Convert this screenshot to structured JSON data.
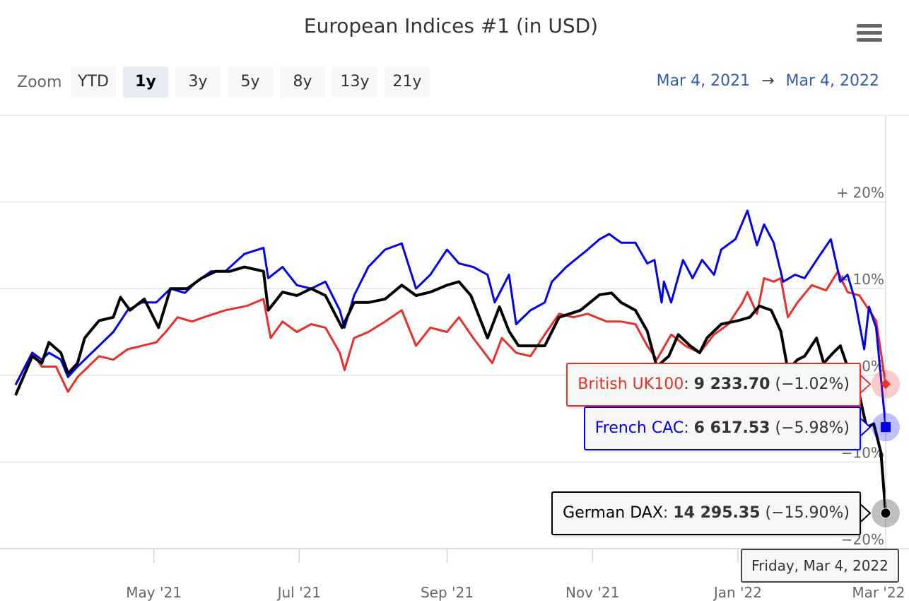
{
  "title": "European Indices #1 (in USD)",
  "zoom": {
    "label": "Zoom",
    "buttons": [
      "YTD",
      "1y",
      "3y",
      "5y",
      "8y",
      "13y",
      "21y"
    ],
    "active": "1y"
  },
  "range": {
    "from": "Mar 4, 2021",
    "arrow": "→",
    "to": "Mar 4, 2022"
  },
  "icons": {
    "menu": "hamburger-menu-icon"
  },
  "chart_data": {
    "type": "line",
    "title": "European Indices #1 (in USD)",
    "x_unit": "days since Mar 4, 2021",
    "xlim": [
      0,
      365
    ],
    "ylim": [
      -20,
      30
    ],
    "y_ticks": [
      {
        "v": 20,
        "label": "+ 20%"
      },
      {
        "v": 10,
        "label": "+ 10%"
      },
      {
        "v": 0,
        "label": "0%"
      },
      {
        "v": -10,
        "label": "−10%"
      },
      {
        "v": -20,
        "label": "−20%"
      }
    ],
    "x_ticks": [
      {
        "d": 58,
        "label": "May '21"
      },
      {
        "d": 119,
        "label": "Jul '21"
      },
      {
        "d": 181,
        "label": "Sep '21"
      },
      {
        "d": 242,
        "label": "Nov '21"
      },
      {
        "d": 303,
        "label": "Jan '22"
      },
      {
        "d": 362,
        "label": "Mar '22"
      }
    ],
    "series": [
      {
        "name": "British UK100",
        "color": "#e8302a",
        "marker": "diamond",
        "value": "9 233.70",
        "change": "(−1.02%)",
        "points": [
          [
            0,
            -1.1
          ],
          [
            7,
            2.6
          ],
          [
            11,
            1.0
          ],
          [
            17,
            1.0
          ],
          [
            22,
            -1.9
          ],
          [
            26,
            -0.2
          ],
          [
            35,
            2.2
          ],
          [
            41,
            1.8
          ],
          [
            47,
            3.0
          ],
          [
            53,
            3.4
          ],
          [
            59,
            3.8
          ],
          [
            63,
            5.0
          ],
          [
            68,
            6.7
          ],
          [
            74,
            6.2
          ],
          [
            79,
            6.7
          ],
          [
            88,
            7.5
          ],
          [
            97,
            8.0
          ],
          [
            104,
            8.8
          ],
          [
            107,
            4.3
          ],
          [
            112,
            6.2
          ],
          [
            118,
            5.0
          ],
          [
            124,
            5.9
          ],
          [
            130,
            5.5
          ],
          [
            136,
            2.6
          ],
          [
            138,
            0.6
          ],
          [
            142,
            4.3
          ],
          [
            148,
            5.0
          ],
          [
            155,
            6.2
          ],
          [
            162,
            7.5
          ],
          [
            168,
            3.4
          ],
          [
            174,
            5.5
          ],
          [
            181,
            5.0
          ],
          [
            186,
            6.7
          ],
          [
            192,
            4.3
          ],
          [
            200,
            1.4
          ],
          [
            204,
            4.3
          ],
          [
            210,
            2.6
          ],
          [
            216,
            2.2
          ],
          [
            222,
            4.7
          ],
          [
            228,
            7.1
          ],
          [
            234,
            6.7
          ],
          [
            240,
            7.1
          ],
          [
            248,
            6.2
          ],
          [
            254,
            6.2
          ],
          [
            260,
            5.9
          ],
          [
            265,
            3.4
          ],
          [
            269,
            1.8
          ],
          [
            275,
            4.7
          ],
          [
            281,
            3.4
          ],
          [
            287,
            2.6
          ],
          [
            293,
            4.7
          ],
          [
            299,
            5.9
          ],
          [
            305,
            8.4
          ],
          [
            307,
            9.6
          ],
          [
            311,
            7.1
          ],
          [
            314,
            11.2
          ],
          [
            318,
            10.8
          ],
          [
            321,
            11.2
          ],
          [
            324,
            6.7
          ],
          [
            328,
            8.4
          ],
          [
            334,
            10.4
          ],
          [
            340,
            9.8
          ],
          [
            345,
            12.0
          ],
          [
            349,
            9.6
          ],
          [
            354,
            9.2
          ],
          [
            361,
            6.3
          ],
          [
            365,
            -1.02
          ]
        ]
      },
      {
        "name": "French CAC",
        "color": "#0000ee",
        "marker": "square",
        "value": "6 617.53",
        "change": "(−5.98%)",
        "points": [
          [
            0,
            -1.1
          ],
          [
            7,
            2.6
          ],
          [
            11,
            1.8
          ],
          [
            14,
            2.6
          ],
          [
            19,
            1.8
          ],
          [
            22,
            -0.2
          ],
          [
            26,
            1.0
          ],
          [
            32,
            2.6
          ],
          [
            41,
            5.0
          ],
          [
            47,
            7.5
          ],
          [
            53,
            8.4
          ],
          [
            59,
            8.4
          ],
          [
            65,
            10.0
          ],
          [
            71,
            9.5
          ],
          [
            76,
            10.8
          ],
          [
            82,
            12.0
          ],
          [
            88,
            12.0
          ],
          [
            96,
            14.0
          ],
          [
            104,
            14.7
          ],
          [
            106,
            11.2
          ],
          [
            112,
            12.5
          ],
          [
            118,
            10.4
          ],
          [
            124,
            10.0
          ],
          [
            130,
            10.8
          ],
          [
            136,
            7.5
          ],
          [
            138,
            5.5
          ],
          [
            142,
            9.2
          ],
          [
            148,
            12.5
          ],
          [
            155,
            14.5
          ],
          [
            162,
            15.2
          ],
          [
            168,
            10.0
          ],
          [
            174,
            11.6
          ],
          [
            181,
            14.5
          ],
          [
            186,
            12.9
          ],
          [
            192,
            12.5
          ],
          [
            198,
            11.6
          ],
          [
            201,
            8.4
          ],
          [
            207,
            11.6
          ],
          [
            210,
            5.9
          ],
          [
            216,
            7.5
          ],
          [
            222,
            8.4
          ],
          [
            225,
            10.8
          ],
          [
            231,
            12.5
          ],
          [
            240,
            14.5
          ],
          [
            245,
            15.7
          ],
          [
            249,
            16.3
          ],
          [
            254,
            15.3
          ],
          [
            260,
            15.3
          ],
          [
            265,
            12.9
          ],
          [
            268,
            13.3
          ],
          [
            271,
            8.4
          ],
          [
            272,
            10.8
          ],
          [
            275,
            8.4
          ],
          [
            280,
            13.3
          ],
          [
            284,
            11.2
          ],
          [
            288,
            13.3
          ],
          [
            293,
            11.6
          ],
          [
            296,
            14.5
          ],
          [
            302,
            15.7
          ],
          [
            307,
            19.0
          ],
          [
            311,
            15.0
          ],
          [
            314,
            17.4
          ],
          [
            318,
            15.3
          ],
          [
            322,
            10.8
          ],
          [
            327,
            11.6
          ],
          [
            331,
            11.2
          ],
          [
            337,
            13.7
          ],
          [
            342,
            15.7
          ],
          [
            346,
            10.8
          ],
          [
            349,
            11.6
          ],
          [
            352,
            8.8
          ],
          [
            356,
            3.0
          ],
          [
            358,
            7.9
          ],
          [
            361,
            5.5
          ],
          [
            365,
            -5.98
          ]
        ]
      },
      {
        "name": "German DAX",
        "color": "#000000",
        "marker": "circle",
        "value": "14 295.35",
        "change": "(−15.90%)",
        "points": [
          [
            0,
            -2.3
          ],
          [
            7,
            2.2
          ],
          [
            11,
            1.4
          ],
          [
            14,
            3.8
          ],
          [
            19,
            2.6
          ],
          [
            22,
            0.2
          ],
          [
            26,
            1.4
          ],
          [
            29,
            4.3
          ],
          [
            35,
            6.3
          ],
          [
            41,
            6.7
          ],
          [
            44,
            9.0
          ],
          [
            48,
            7.5
          ],
          [
            54,
            8.8
          ],
          [
            60,
            5.5
          ],
          [
            65,
            10.0
          ],
          [
            72,
            10.0
          ],
          [
            78,
            11.2
          ],
          [
            84,
            12.0
          ],
          [
            90,
            12.0
          ],
          [
            96,
            12.5
          ],
          [
            104,
            12.0
          ],
          [
            106,
            7.5
          ],
          [
            112,
            9.6
          ],
          [
            118,
            9.2
          ],
          [
            124,
            10.0
          ],
          [
            130,
            9.2
          ],
          [
            137,
            5.5
          ],
          [
            142,
            8.4
          ],
          [
            148,
            8.4
          ],
          [
            155,
            8.8
          ],
          [
            162,
            10.4
          ],
          [
            168,
            9.2
          ],
          [
            174,
            9.6
          ],
          [
            181,
            10.4
          ],
          [
            186,
            10.8
          ],
          [
            191,
            9.2
          ],
          [
            198,
            4.3
          ],
          [
            203,
            7.9
          ],
          [
            207,
            5.1
          ],
          [
            211,
            3.4
          ],
          [
            216,
            3.4
          ],
          [
            222,
            3.4
          ],
          [
            228,
            6.7
          ],
          [
            237,
            7.5
          ],
          [
            245,
            9.3
          ],
          [
            250,
            9.5
          ],
          [
            254,
            8.4
          ],
          [
            260,
            7.5
          ],
          [
            265,
            5.1
          ],
          [
            269,
            1.0
          ],
          [
            274,
            2.2
          ],
          [
            278,
            4.7
          ],
          [
            283,
            3.4
          ],
          [
            287,
            2.6
          ],
          [
            290,
            4.3
          ],
          [
            296,
            5.9
          ],
          [
            303,
            6.3
          ],
          [
            308,
            6.7
          ],
          [
            312,
            8.0
          ],
          [
            317,
            7.5
          ],
          [
            321,
            5.1
          ],
          [
            324,
            0.6
          ],
          [
            328,
            1.8
          ],
          [
            331,
            2.2
          ],
          [
            336,
            4.3
          ],
          [
            339,
            1.4
          ],
          [
            343,
            2.6
          ],
          [
            346,
            3.4
          ],
          [
            349,
            1.0
          ],
          [
            354,
            -2.3
          ],
          [
            357,
            -6.0
          ],
          [
            360,
            -5.6
          ],
          [
            363,
            -8.9
          ],
          [
            365,
            -15.9
          ]
        ]
      }
    ],
    "tooltip_date": "Friday, Mar 4, 2022"
  }
}
